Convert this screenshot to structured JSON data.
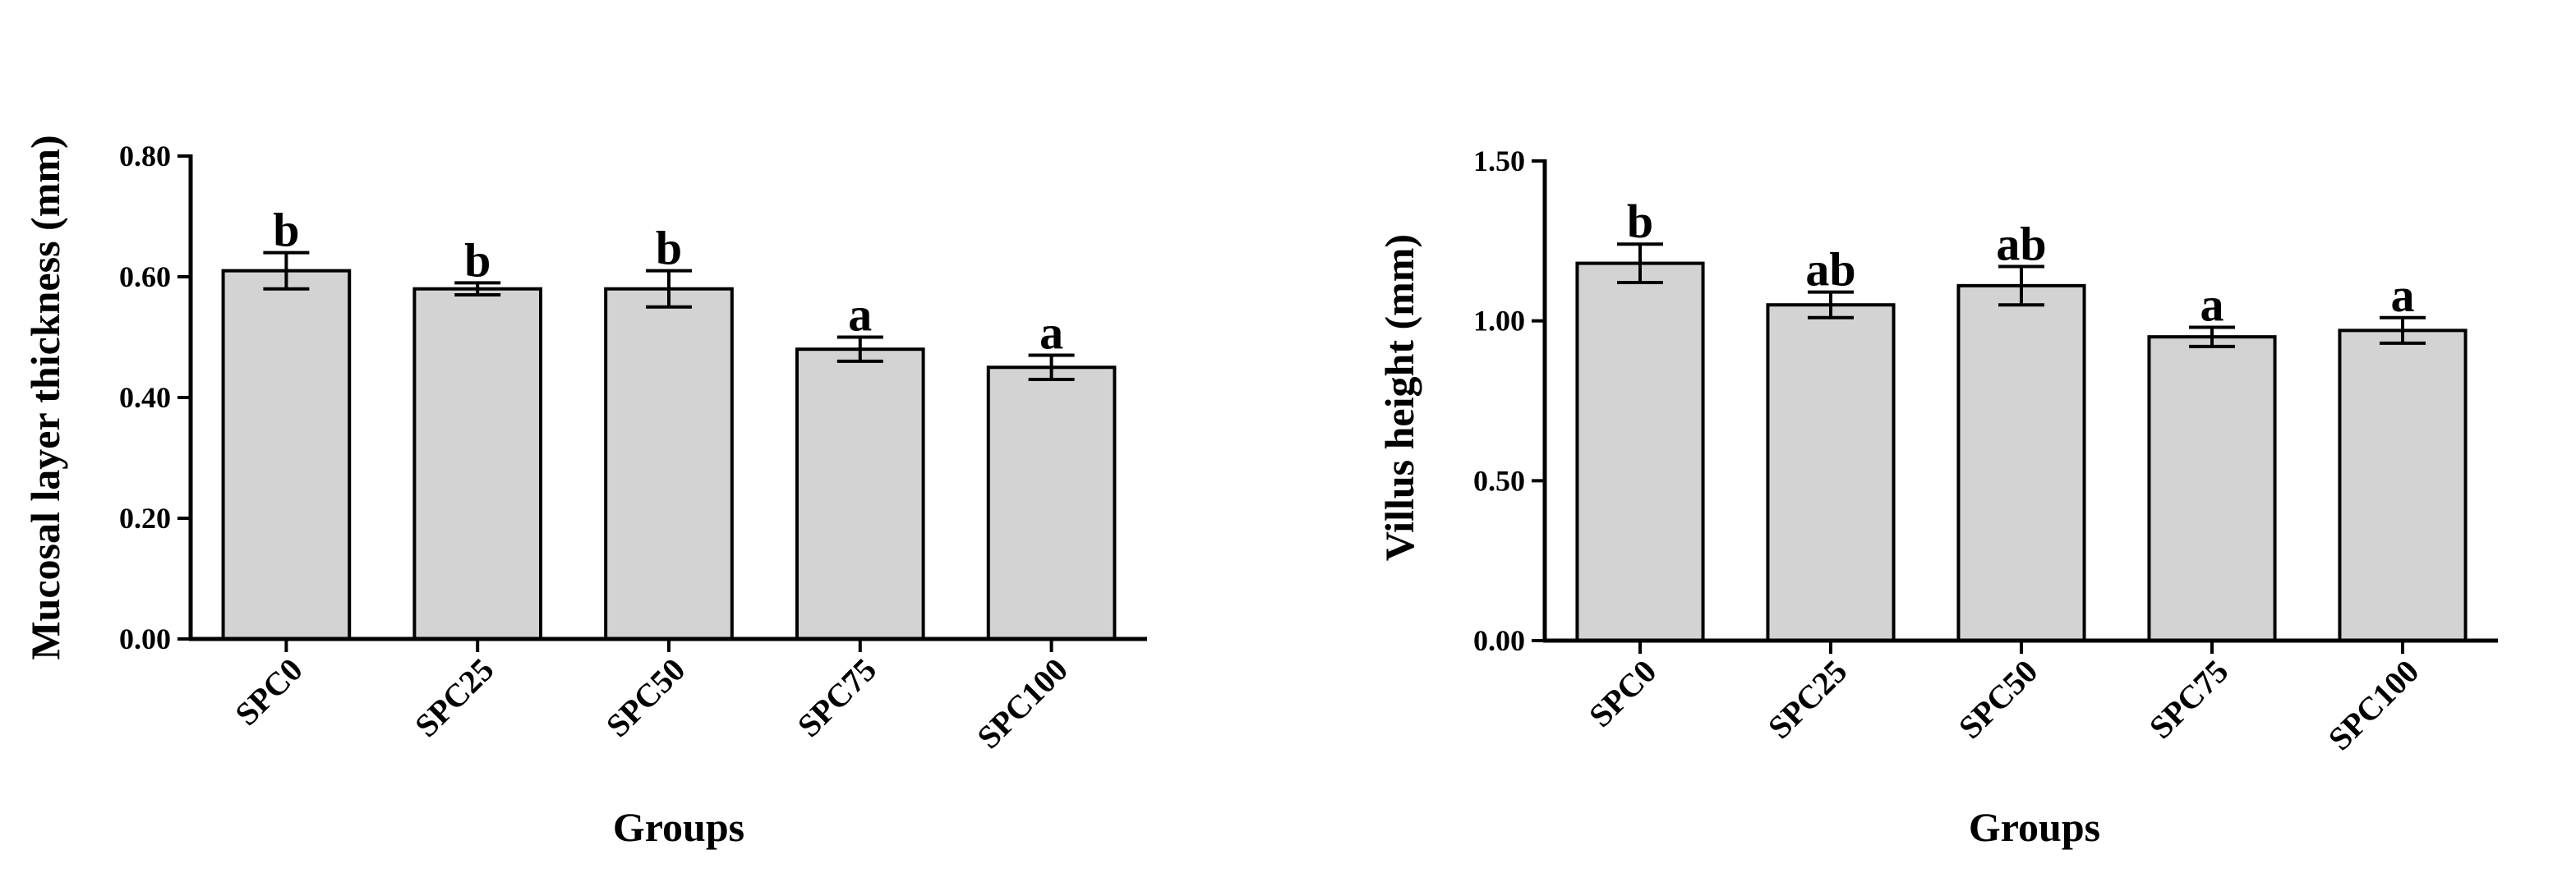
{
  "chart_data": [
    {
      "type": "bar",
      "categories": [
        "SPC0",
        "SPC25",
        "SPC50",
        "SPC75",
        "SPC100"
      ],
      "values": [
        0.61,
        0.58,
        0.58,
        0.48,
        0.45
      ],
      "errors": [
        0.03,
        0.01,
        0.03,
        0.02,
        0.02
      ],
      "significance": [
        "b",
        "b",
        "b",
        "a",
        "a"
      ],
      "xlabel": "Groups",
      "ylabel": "Mucosal layer thickness (mm)",
      "ylim": [
        0,
        0.8
      ],
      "yticks": [
        "0.00",
        "0.20",
        "0.40",
        "0.60",
        "0.80"
      ],
      "bar_color": "#d3d3d3",
      "grid": false
    },
    {
      "type": "bar",
      "categories": [
        "SPC0",
        "SPC25",
        "SPC50",
        "SPC75",
        "SPC100"
      ],
      "values": [
        1.18,
        1.05,
        1.11,
        0.95,
        0.97
      ],
      "errors": [
        0.06,
        0.04,
        0.06,
        0.03,
        0.04
      ],
      "significance": [
        "b",
        "ab",
        "ab",
        "a",
        "a"
      ],
      "xlabel": "Groups",
      "ylabel": "Villus height (mm)",
      "ylim": [
        0,
        1.5
      ],
      "yticks": [
        "0.00",
        "0.50",
        "1.00",
        "1.50"
      ],
      "bar_color": "#d3d3d3",
      "grid": false
    }
  ]
}
